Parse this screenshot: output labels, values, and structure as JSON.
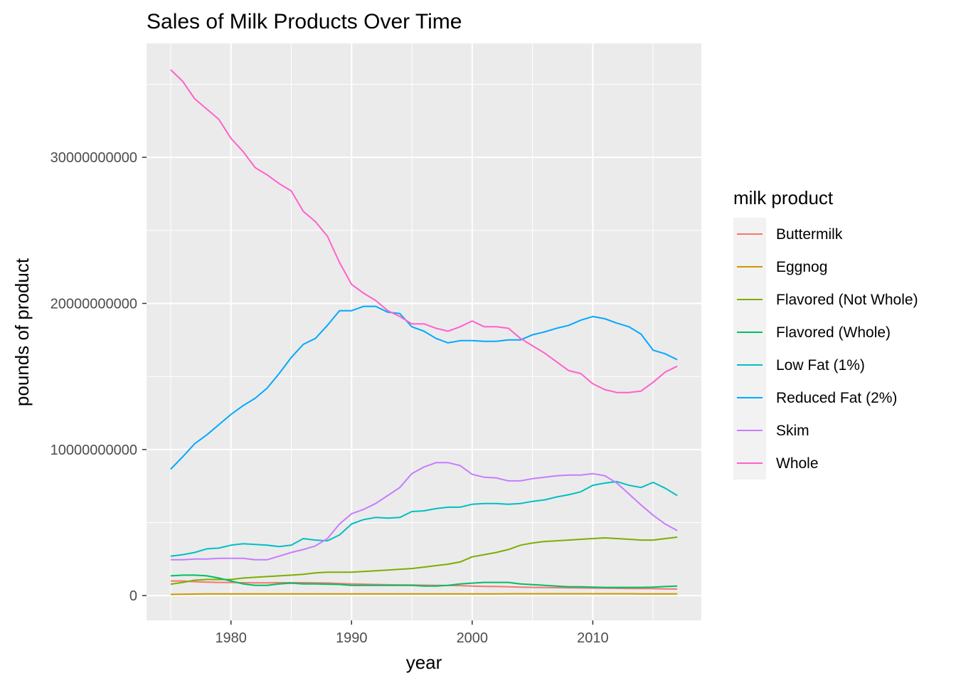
{
  "chart_data": {
    "type": "line",
    "title": "Sales of Milk Products Over Time",
    "xlabel": "year",
    "ylabel": "pounds of product",
    "xlim": [
      1973,
      2019
    ],
    "ylim": [
      -1700000000,
      37800000000
    ],
    "x_ticks": [
      1980,
      1990,
      2000,
      2010
    ],
    "x_tick_labels": [
      "1980",
      "1990",
      "2000",
      "2010"
    ],
    "y_ticks": [
      0,
      10000000000,
      20000000000,
      30000000000
    ],
    "y_tick_labels": [
      "0",
      "10000000000",
      "20000000000",
      "30000000000"
    ],
    "grid": true,
    "legend_title": "milk product",
    "legend_position": "right",
    "x": [
      1975,
      1976,
      1977,
      1978,
      1979,
      1980,
      1981,
      1982,
      1983,
      1984,
      1985,
      1986,
      1987,
      1988,
      1989,
      1990,
      1991,
      1992,
      1993,
      1994,
      1995,
      1996,
      1997,
      1998,
      1999,
      2000,
      2001,
      2002,
      2003,
      2004,
      2005,
      2006,
      2007,
      2008,
      2009,
      2010,
      2011,
      2012,
      2013,
      2014,
      2015,
      2016,
      2017
    ],
    "series": [
      {
        "name": "Buttermilk",
        "color": "#F8766D",
        "values": [
          1000000000,
          1000000000,
          950000000,
          920000000,
          900000000,
          890000000,
          880000000,
          870000000,
          870000000,
          880000000,
          880000000,
          880000000,
          870000000,
          860000000,
          830000000,
          800000000,
          780000000,
          760000000,
          740000000,
          730000000,
          720000000,
          710000000,
          700000000,
          690000000,
          680000000,
          650000000,
          630000000,
          620000000,
          600000000,
          580000000,
          560000000,
          550000000,
          540000000,
          530000000,
          520000000,
          510000000,
          500000000,
          490000000,
          480000000,
          480000000,
          470000000,
          460000000,
          450000000
        ]
      },
      {
        "name": "Eggnog",
        "color": "#CD9600",
        "values": [
          80000000,
          90000000,
          100000000,
          110000000,
          110000000,
          110000000,
          110000000,
          110000000,
          110000000,
          110000000,
          110000000,
          110000000,
          110000000,
          110000000,
          110000000,
          110000000,
          110000000,
          110000000,
          110000000,
          110000000,
          110000000,
          110000000,
          110000000,
          110000000,
          110000000,
          110000000,
          110000000,
          110000000,
          120000000,
          120000000,
          120000000,
          120000000,
          120000000,
          120000000,
          120000000,
          120000000,
          120000000,
          120000000,
          120000000,
          110000000,
          110000000,
          110000000,
          110000000
        ]
      },
      {
        "name": "Flavored  (Not Whole)",
        "color": "#7CAE00",
        "values": [
          780000000,
          900000000,
          1050000000,
          1100000000,
          1100000000,
          1100000000,
          1200000000,
          1250000000,
          1300000000,
          1350000000,
          1400000000,
          1450000000,
          1550000000,
          1600000000,
          1600000000,
          1600000000,
          1650000000,
          1700000000,
          1750000000,
          1800000000,
          1850000000,
          1950000000,
          2050000000,
          2150000000,
          2300000000,
          2650000000,
          2800000000,
          2950000000,
          3150000000,
          3450000000,
          3600000000,
          3700000000,
          3750000000,
          3800000000,
          3850000000,
          3900000000,
          3950000000,
          3900000000,
          3850000000,
          3800000000,
          3800000000,
          3900000000,
          4000000000
        ]
      },
      {
        "name": "Flavored (Whole)",
        "color": "#00BE67",
        "values": [
          1350000000,
          1400000000,
          1400000000,
          1350000000,
          1200000000,
          1000000000,
          800000000,
          700000000,
          700000000,
          800000000,
          850000000,
          800000000,
          800000000,
          780000000,
          760000000,
          700000000,
          700000000,
          700000000,
          700000000,
          700000000,
          700000000,
          650000000,
          650000000,
          700000000,
          800000000,
          850000000,
          900000000,
          900000000,
          900000000,
          800000000,
          750000000,
          700000000,
          650000000,
          600000000,
          600000000,
          580000000,
          560000000,
          560000000,
          560000000,
          560000000,
          580000000,
          620000000,
          650000000
        ]
      },
      {
        "name": "Low Fat (1%)",
        "color": "#00BFC4",
        "values": [
          2700000000,
          2800000000,
          2950000000,
          3200000000,
          3250000000,
          3450000000,
          3550000000,
          3500000000,
          3450000000,
          3350000000,
          3450000000,
          3900000000,
          3800000000,
          3750000000,
          4150000000,
          4900000000,
          5200000000,
          5350000000,
          5300000000,
          5350000000,
          5750000000,
          5800000000,
          5950000000,
          6050000000,
          6050000000,
          6250000000,
          6300000000,
          6300000000,
          6250000000,
          6300000000,
          6450000000,
          6550000000,
          6750000000,
          6900000000,
          7100000000,
          7550000000,
          7700000000,
          7800000000,
          7550000000,
          7400000000,
          7750000000,
          7350000000,
          6850000000
        ]
      },
      {
        "name": "Reduced Fat (2%)",
        "color": "#00A9FF",
        "values": [
          8650000000,
          9500000000,
          10400000000,
          11000000000,
          11700000000,
          12400000000,
          13000000000,
          13500000000,
          14200000000,
          15200000000,
          16300000000,
          17200000000,
          17600000000,
          18500000000,
          19500000000,
          19500000000,
          19800000000,
          19800000000,
          19400000000,
          19300000000,
          18400000000,
          18100000000,
          17600000000,
          17300000000,
          17450000000,
          17450000000,
          17400000000,
          17400000000,
          17500000000,
          17500000000,
          17850000000,
          18050000000,
          18300000000,
          18500000000,
          18850000000,
          19100000000,
          18950000000,
          18650000000,
          18400000000,
          17900000000,
          16800000000,
          16550000000,
          16150000000
        ]
      },
      {
        "name": "Skim",
        "color": "#C77CFF",
        "values": [
          2450000000,
          2450000000,
          2500000000,
          2500000000,
          2550000000,
          2550000000,
          2550000000,
          2450000000,
          2450000000,
          2700000000,
          2950000000,
          3150000000,
          3400000000,
          3900000000,
          4900000000,
          5600000000,
          5900000000,
          6300000000,
          6850000000,
          7400000000,
          8350000000,
          8800000000,
          9100000000,
          9100000000,
          8900000000,
          8300000000,
          8100000000,
          8050000000,
          7850000000,
          7850000000,
          8000000000,
          8100000000,
          8200000000,
          8250000000,
          8250000000,
          8350000000,
          8200000000,
          7700000000,
          6950000000,
          6200000000,
          5500000000,
          4900000000,
          4450000000
        ]
      },
      {
        "name": "Whole",
        "color": "#FF61CC",
        "values": [
          36000000000,
          35200000000,
          34000000000,
          33300000000,
          32600000000,
          31300000000,
          30400000000,
          29300000000,
          28800000000,
          28200000000,
          27700000000,
          26300000000,
          25600000000,
          24600000000,
          22800000000,
          21300000000,
          20700000000,
          20200000000,
          19500000000,
          19100000000,
          18600000000,
          18600000000,
          18300000000,
          18100000000,
          18400000000,
          18800000000,
          18400000000,
          18400000000,
          18300000000,
          17600000000,
          17100000000,
          16600000000,
          16000000000,
          15400000000,
          15200000000,
          14500000000,
          14100000000,
          13900000000,
          13900000000,
          14000000000,
          14600000000,
          15300000000,
          15700000000
        ]
      }
    ]
  }
}
